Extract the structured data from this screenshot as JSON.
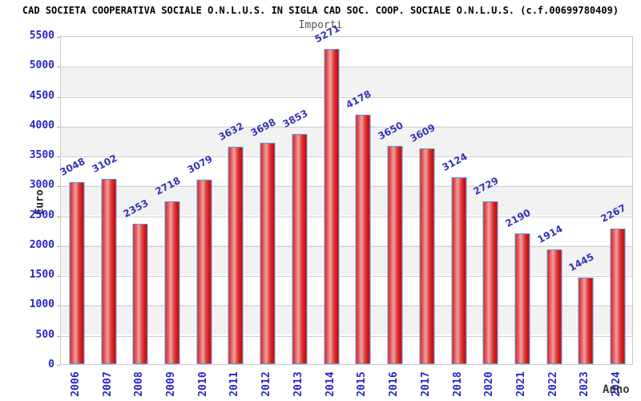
{
  "title": "CAD SOCIETA COOPERATIVA SOCIALE O.N.L.U.S. IN SIGLA CAD SOC. COOP. SOCIALE O.N.L.U.S. (c.f.00699780409)",
  "subtitle": "Importi",
  "chart_data": {
    "type": "bar",
    "title": "Importi",
    "xlabel": "Anno",
    "ylabel": "Euro",
    "categories": [
      "2006",
      "2007",
      "2008",
      "2009",
      "2010",
      "2011",
      "2012",
      "2013",
      "2014",
      "2015",
      "2016",
      "2017",
      "2018",
      "2020",
      "2021",
      "2022",
      "2023",
      "2024"
    ],
    "values": [
      3048,
      3102,
      2353,
      2718,
      3079,
      3632,
      3698,
      3853,
      5271,
      4178,
      3650,
      3609,
      3124,
      2729,
      2190,
      1914,
      1445,
      2267
    ],
    "ylim": [
      0,
      5500
    ],
    "ytick_step": 500,
    "grid": true,
    "background_bands": true,
    "legend": "none"
  },
  "colors": {
    "bar_fill": "#d62020",
    "bar_fill_light": "#efa3a3",
    "bar_border": "#5e9ad6",
    "value_label": "#3434bb",
    "tick_label": "#2626cc",
    "band": "#f2f2f2",
    "grid": "#cfcfcf",
    "title": "#000000",
    "subtitle": "#555555",
    "axis_title": "#222222"
  }
}
